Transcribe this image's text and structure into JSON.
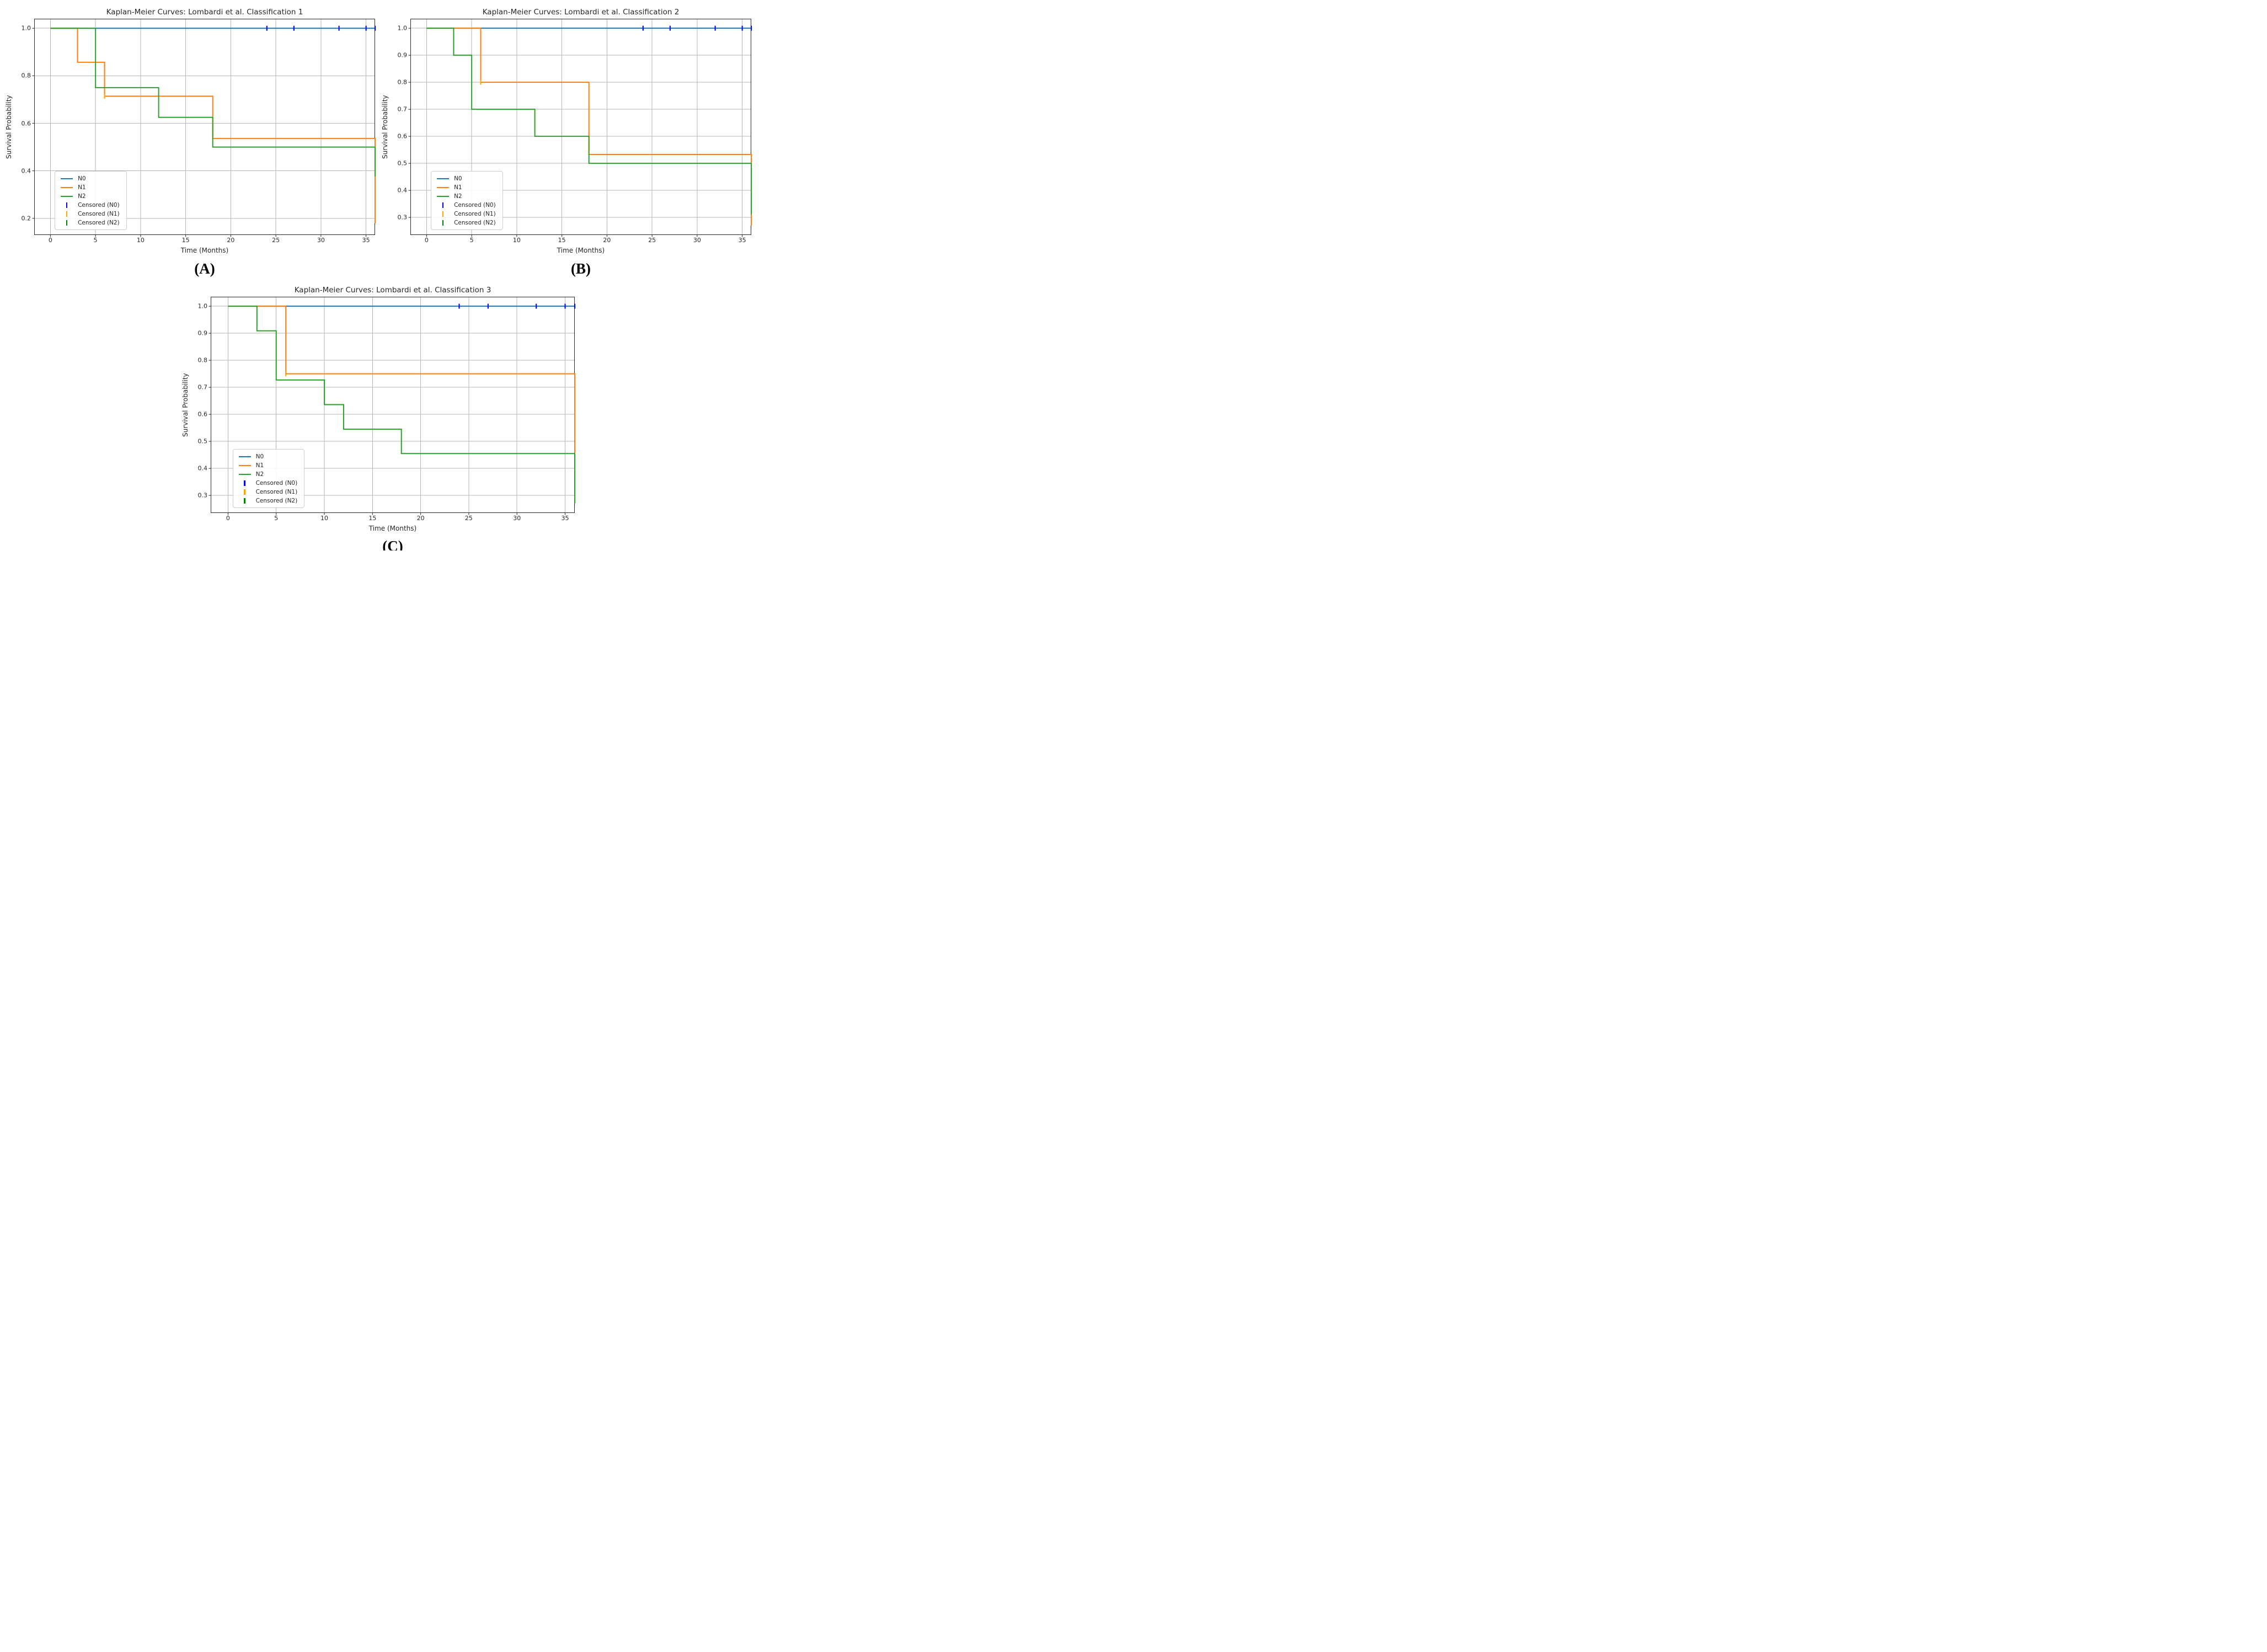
{
  "page": {
    "background": "#ffffff"
  },
  "captions": [
    "(A)",
    "(B)",
    "(C)"
  ],
  "style_colors": {
    "grid": "#b5b5b5",
    "spine": "#262626",
    "text": "#262626"
  },
  "chart_data": [
    {
      "id": "A",
      "type": "line",
      "subtype": "kaplan_meier_step",
      "title": "Kaplan-Meier Curves: Lombardi et al. Classification 1",
      "xlabel": "Time (Months)",
      "ylabel": "Survival Probability",
      "xlim": [
        -1.8,
        36.0
      ],
      "ylim": [
        0.13,
        1.04
      ],
      "xticks": [
        0,
        5,
        10,
        15,
        20,
        25,
        30,
        35
      ],
      "yticks": [
        0.2,
        0.4,
        0.6,
        0.8,
        1.0
      ],
      "grid": true,
      "legend_location": "lower left",
      "series": [
        {
          "name": "N0",
          "color": "#1f77b4",
          "steps": [
            [
              0,
              1.0
            ],
            [
              36,
              1.0
            ]
          ]
        },
        {
          "name": "N1",
          "color": "#ff7f0e",
          "steps": [
            [
              0,
              1.0
            ],
            [
              3,
              1.0
            ],
            [
              3,
              0.857
            ],
            [
              6,
              0.857
            ],
            [
              6,
              0.714
            ],
            [
              18,
              0.714
            ],
            [
              18,
              0.536
            ],
            [
              36,
              0.536
            ],
            [
              36,
              0.179
            ]
          ]
        },
        {
          "name": "N2",
          "color": "#2ca02c",
          "steps": [
            [
              0,
              1.0
            ],
            [
              5,
              1.0
            ],
            [
              5,
              0.75
            ],
            [
              12,
              0.75
            ],
            [
              12,
              0.625
            ],
            [
              18,
              0.625
            ],
            [
              18,
              0.5
            ],
            [
              36,
              0.5
            ],
            [
              36,
              0.375
            ]
          ]
        }
      ],
      "censored": [
        {
          "name": "Censored (N0)",
          "color": "#0000ff",
          "points": [
            [
              24,
              1.0
            ],
            [
              27,
              1.0
            ],
            [
              32,
              1.0
            ],
            [
              35,
              1.0
            ],
            [
              36,
              1.0
            ]
          ]
        },
        {
          "name": "Censored (N1)",
          "color": "#ffa500",
          "points": [
            [
              6,
              0.714
            ]
          ]
        },
        {
          "name": "Censored (N2)",
          "color": "#008000",
          "points": []
        }
      ]
    },
    {
      "id": "B",
      "type": "line",
      "subtype": "kaplan_meier_step",
      "title": "Kaplan-Meier Curves: Lombardi et al. Classification 2",
      "xlabel": "Time (Months)",
      "ylabel": "Survival Probability",
      "xlim": [
        -1.8,
        36.0
      ],
      "ylim": [
        0.235,
        1.035
      ],
      "xticks": [
        0,
        5,
        10,
        15,
        20,
        25,
        30,
        35
      ],
      "yticks": [
        0.3,
        0.4,
        0.5,
        0.6,
        0.7,
        0.8,
        0.9,
        1.0
      ],
      "grid": true,
      "legend_location": "lower left",
      "series": [
        {
          "name": "N0",
          "color": "#1f77b4",
          "steps": [
            [
              0,
              1.0
            ],
            [
              36,
              1.0
            ]
          ]
        },
        {
          "name": "N1",
          "color": "#ff7f0e",
          "steps": [
            [
              0,
              1.0
            ],
            [
              6,
              1.0
            ],
            [
              6,
              0.8
            ],
            [
              18,
              0.8
            ],
            [
              18,
              0.533
            ],
            [
              36,
              0.533
            ],
            [
              36,
              0.27
            ]
          ]
        },
        {
          "name": "N2",
          "color": "#2ca02c",
          "steps": [
            [
              0,
              1.0
            ],
            [
              3,
              1.0
            ],
            [
              3,
              0.9
            ],
            [
              5,
              0.9
            ],
            [
              5,
              0.7
            ],
            [
              12,
              0.7
            ],
            [
              12,
              0.6
            ],
            [
              18,
              0.6
            ],
            [
              18,
              0.5
            ],
            [
              36,
              0.5
            ],
            [
              36,
              0.31
            ]
          ]
        }
      ],
      "censored": [
        {
          "name": "Censored (N0)",
          "color": "#0000ff",
          "points": [
            [
              24,
              1.0
            ],
            [
              27,
              1.0
            ],
            [
              32,
              1.0
            ],
            [
              35,
              1.0
            ],
            [
              36,
              1.0
            ]
          ]
        },
        {
          "name": "Censored (N1)",
          "color": "#ffa500",
          "points": [
            [
              6,
              0.8
            ]
          ]
        },
        {
          "name": "Censored (N2)",
          "color": "#008000",
          "points": []
        }
      ]
    },
    {
      "id": "C",
      "type": "line",
      "subtype": "kaplan_meier_step",
      "title": "Kaplan-Meier Curves: Lombardi et al. Classification 3",
      "xlabel": "Time (Months)",
      "ylabel": "Survival Probability",
      "xlim": [
        -1.8,
        36.0
      ],
      "ylim": [
        0.235,
        1.035
      ],
      "xticks": [
        0,
        5,
        10,
        15,
        20,
        25,
        30,
        35
      ],
      "yticks": [
        0.3,
        0.4,
        0.5,
        0.6,
        0.7,
        0.8,
        0.9,
        1.0
      ],
      "grid": true,
      "legend_location": "lower left",
      "series": [
        {
          "name": "N0",
          "color": "#1f77b4",
          "steps": [
            [
              0,
              1.0
            ],
            [
              36,
              1.0
            ]
          ]
        },
        {
          "name": "N1",
          "color": "#ff7f0e",
          "steps": [
            [
              0,
              1.0
            ],
            [
              6,
              1.0
            ],
            [
              6,
              0.75
            ],
            [
              36,
              0.75
            ],
            [
              36,
              0.375
            ]
          ]
        },
        {
          "name": "N2",
          "color": "#2ca02c",
          "steps": [
            [
              0,
              1.0
            ],
            [
              3,
              1.0
            ],
            [
              3,
              0.909
            ],
            [
              5,
              0.909
            ],
            [
              5,
              0.727
            ],
            [
              10,
              0.727
            ],
            [
              10,
              0.636
            ],
            [
              12,
              0.636
            ],
            [
              12,
              0.545
            ],
            [
              18,
              0.545
            ],
            [
              18,
              0.455
            ],
            [
              36,
              0.455
            ],
            [
              36,
              0.27
            ]
          ]
        }
      ],
      "censored": [
        {
          "name": "Censored (N0)",
          "color": "#0000ff",
          "points": [
            [
              24,
              1.0
            ],
            [
              27,
              1.0
            ],
            [
              32,
              1.0
            ],
            [
              35,
              1.0
            ],
            [
              36,
              1.0
            ]
          ]
        },
        {
          "name": "Censored (N1)",
          "color": "#ffa500",
          "points": [
            [
              6,
              0.75
            ]
          ]
        },
        {
          "name": "Censored (N2)",
          "color": "#008000",
          "points": []
        }
      ]
    }
  ]
}
